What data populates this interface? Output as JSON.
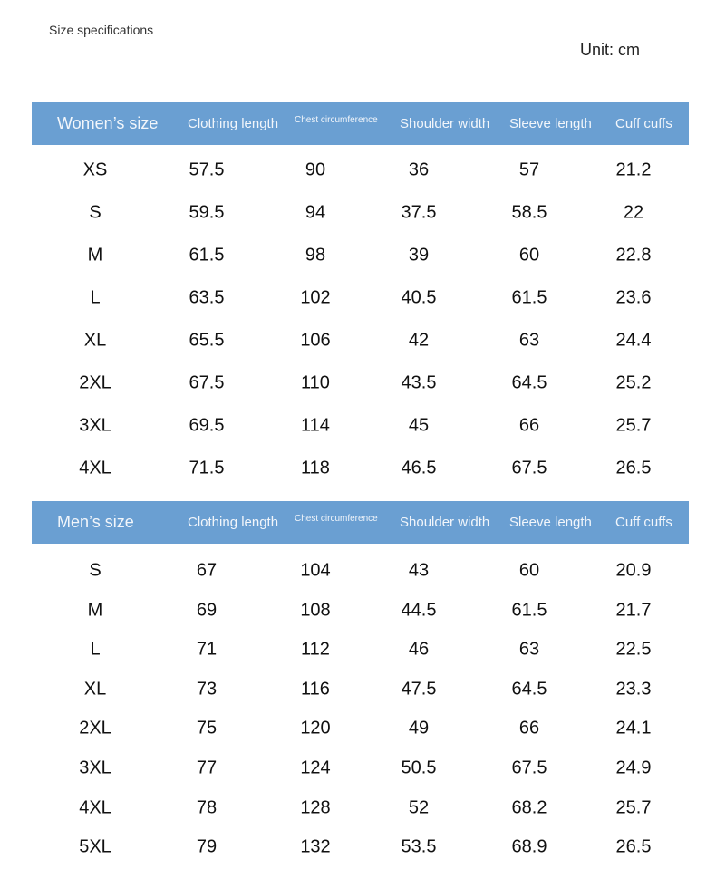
{
  "header": {
    "title": "Size specifications",
    "unit": "Unit: cm"
  },
  "tables": [
    {
      "columns": [
        "Women’s size",
        "Clothing length",
        "Chest circumference",
        "Shoulder width",
        "Sleeve length",
        "Cuff cuffs"
      ],
      "rows": [
        [
          "XS",
          "57.5",
          "90",
          "36",
          "57",
          "21.2"
        ],
        [
          "S",
          "59.5",
          "94",
          "37.5",
          "58.5",
          "22"
        ],
        [
          "M",
          "61.5",
          "98",
          "39",
          "60",
          "22.8"
        ],
        [
          "L",
          "63.5",
          "102",
          "40.5",
          "61.5",
          "23.6"
        ],
        [
          "XL",
          "65.5",
          "106",
          "42",
          "63",
          "24.4"
        ],
        [
          "2XL",
          "67.5",
          "110",
          "43.5",
          "64.5",
          "25.2"
        ],
        [
          "3XL",
          "69.5",
          "114",
          "45",
          "66",
          "25.7"
        ],
        [
          "4XL",
          "71.5",
          "118",
          "46.5",
          "67.5",
          "26.5"
        ]
      ]
    },
    {
      "columns": [
        "Men’s size",
        "Clothing length",
        "Chest circumference",
        "Shoulder width",
        "Sleeve length",
        "Cuff cuffs"
      ],
      "rows": [
        [
          "S",
          "67",
          "104",
          "43",
          "60",
          "20.9"
        ],
        [
          "M",
          "69",
          "108",
          "44.5",
          "61.5",
          "21.7"
        ],
        [
          "L",
          "71",
          "112",
          "46",
          "63",
          "22.5"
        ],
        [
          "XL",
          "73",
          "116",
          "47.5",
          "64.5",
          "23.3"
        ],
        [
          "2XL",
          "75",
          "120",
          "49",
          "66",
          "24.1"
        ],
        [
          "3XL",
          "77",
          "124",
          "50.5",
          "67.5",
          "24.9"
        ],
        [
          "4XL",
          "78",
          "128",
          "52",
          "68.2",
          "25.7"
        ],
        [
          "5XL",
          "79",
          "132",
          "53.5",
          "68.9",
          "26.5"
        ]
      ]
    }
  ]
}
